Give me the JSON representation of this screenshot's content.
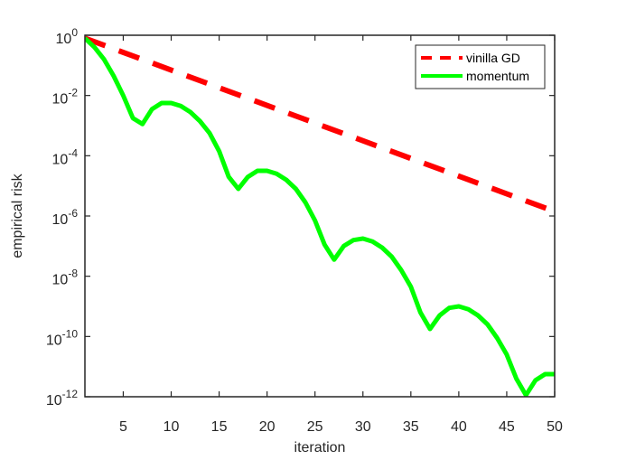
{
  "chart_data": {
    "type": "line",
    "title": "",
    "xlabel": "iteration",
    "ylabel": "empirical risk",
    "xlim": [
      1,
      50
    ],
    "ylim": [
      1e-12,
      1
    ],
    "yscale": "log",
    "grid": false,
    "legend_position": "upper right",
    "x_ticks": [
      5,
      10,
      15,
      20,
      25,
      30,
      35,
      40,
      45,
      50
    ],
    "y_ticks": [
      {
        "exp": 0,
        "label": "10",
        "sup": "0"
      },
      {
        "exp": -2,
        "label": "10",
        "sup": "-2"
      },
      {
        "exp": -4,
        "label": "10",
        "sup": "-4"
      },
      {
        "exp": -6,
        "label": "10",
        "sup": "-6"
      },
      {
        "exp": -8,
        "label": "10",
        "sup": "-8"
      },
      {
        "exp": -10,
        "label": "10",
        "sup": "-10"
      },
      {
        "exp": -12,
        "label": "10",
        "sup": "-12"
      }
    ],
    "series": [
      {
        "name": "vinilla GD",
        "color": "#ff0000",
        "style": "dashed",
        "x": [
          1,
          50
        ],
        "log10_y": [
          -0.1,
          -5.85
        ]
      },
      {
        "name": "momentum",
        "color": "#00ff00",
        "style": "solid",
        "x": [
          1,
          2,
          3,
          4,
          5,
          6,
          7,
          8,
          9,
          10,
          11,
          12,
          13,
          14,
          15,
          16,
          17,
          18,
          19,
          20,
          21,
          22,
          23,
          24,
          25,
          26,
          27,
          28,
          29,
          30,
          31,
          32,
          33,
          34,
          35,
          36,
          37,
          38,
          39,
          40,
          41,
          42,
          43,
          44,
          45,
          46,
          47,
          48,
          49,
          50
        ],
        "log10_y": [
          -0.1,
          -0.4,
          -0.8,
          -1.35,
          -2.0,
          -2.75,
          -2.95,
          -2.45,
          -2.25,
          -2.25,
          -2.35,
          -2.55,
          -2.85,
          -3.25,
          -3.85,
          -4.7,
          -5.1,
          -4.7,
          -4.5,
          -4.5,
          -4.6,
          -4.8,
          -5.1,
          -5.55,
          -6.15,
          -6.95,
          -7.45,
          -7.0,
          -6.8,
          -6.75,
          -6.85,
          -7.05,
          -7.35,
          -7.8,
          -8.35,
          -9.2,
          -9.75,
          -9.3,
          -9.05,
          -9.0,
          -9.1,
          -9.3,
          -9.6,
          -10.05,
          -10.6,
          -11.4,
          -11.95,
          -11.45,
          -11.25,
          -11.25
        ]
      }
    ]
  },
  "legend": {
    "items": [
      {
        "label": "vinilla GD"
      },
      {
        "label": "momentum"
      }
    ]
  }
}
